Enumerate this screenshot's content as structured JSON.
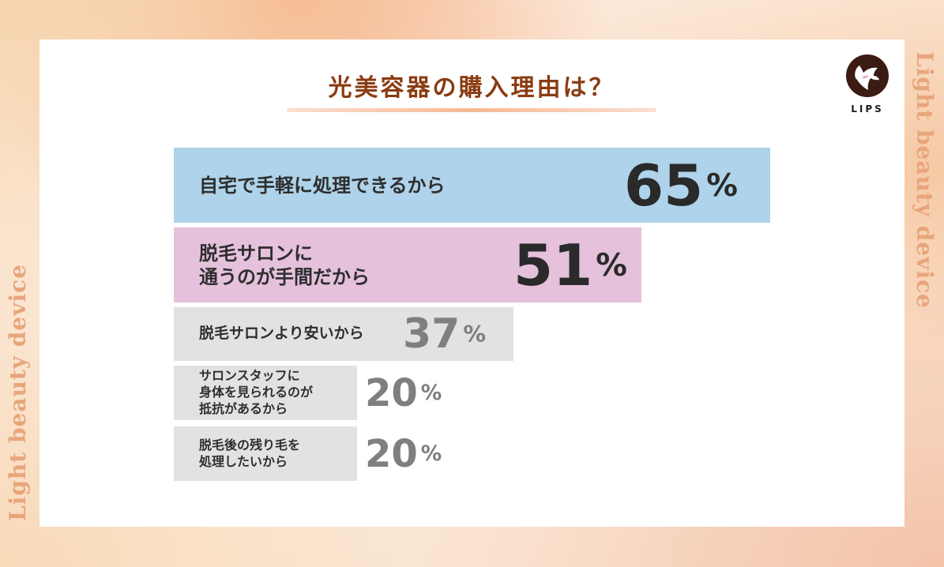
{
  "side_text": "Light beauty device",
  "logo": {
    "text": "LIPS"
  },
  "title": "光美容器の購入理由は？",
  "colors": {
    "bar_top1": "#aed3ea",
    "bar_top2": "#e5c1dc",
    "bar_other": "#e2e2e2",
    "pct_strong": "#2a2a2a",
    "pct_muted": "#7f7f7f",
    "title": "#8a3c12",
    "side_text": "#e8a57c"
  },
  "chart_data": {
    "type": "bar",
    "orientation": "horizontal",
    "title": "光美容器の購入理由は？",
    "categories": [
      [
        "自宅で手軽に処理できるから"
      ],
      [
        "脱毛サロンに",
        "通うのが手間だから"
      ],
      [
        "脱毛サロンより安いから"
      ],
      [
        "サロンスタッフに",
        "身体を見られるのが",
        "抵抗があるから"
      ],
      [
        "脱毛後の残り毛を",
        "処理したいから"
      ]
    ],
    "values": [
      65,
      51,
      37,
      20,
      20
    ],
    "unit": "%",
    "xlim": [
      0,
      65
    ]
  }
}
